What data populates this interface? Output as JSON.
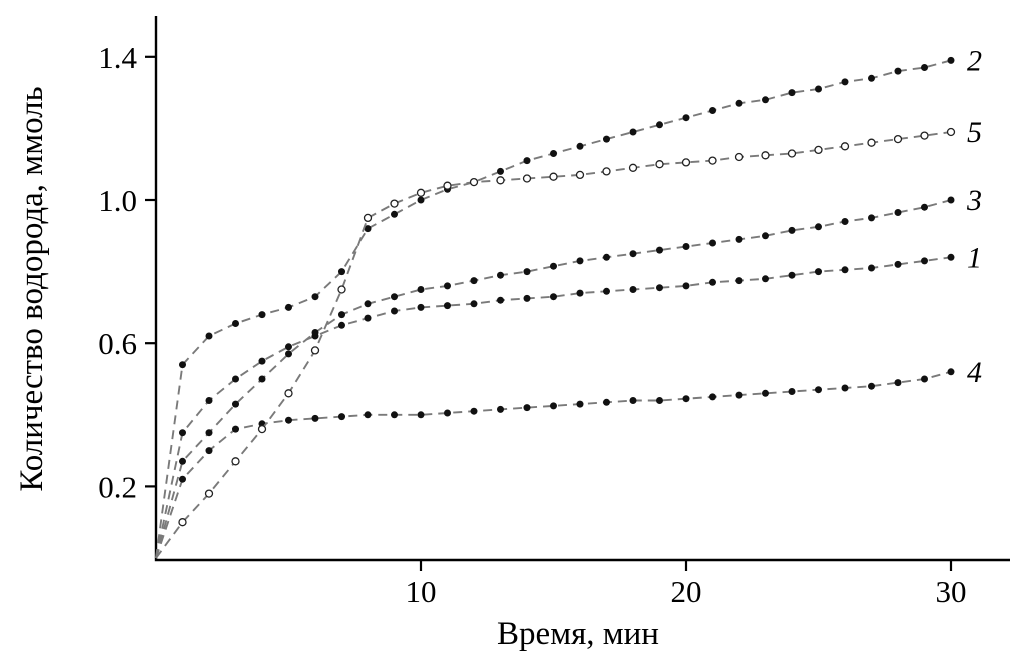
{
  "chart_data": {
    "type": "line",
    "title": "",
    "xlabel": "Время, мин",
    "ylabel": "Количество водорода, ммоль",
    "xlim": [
      0,
      31
    ],
    "ylim": [
      0,
      1.45
    ],
    "grid": false,
    "legend_position": "right-end-labels",
    "line_style": "dashed",
    "colors": {
      "axis": "#000000",
      "line": "#7a7a7a",
      "marker_filled": "#111111",
      "marker_open_fill": "#ffffff",
      "marker_open_stroke": "#222222"
    },
    "xticks": [
      {
        "value": 10,
        "label": "10"
      },
      {
        "value": 20,
        "label": "20"
      },
      {
        "value": 30,
        "label": "30"
      }
    ],
    "yticks": [
      {
        "value": 0.2,
        "label": "0.2"
      },
      {
        "value": 0.6,
        "label": "0.6"
      },
      {
        "value": 1.0,
        "label": "1.0"
      },
      {
        "value": 1.4,
        "label": "1.4"
      }
    ],
    "x": [
      0,
      1,
      2,
      3,
      4,
      5,
      6,
      7,
      8,
      9,
      10,
      11,
      12,
      13,
      14,
      15,
      16,
      17,
      18,
      19,
      20,
      21,
      22,
      23,
      24,
      25,
      26,
      27,
      28,
      29,
      30
    ],
    "series": [
      {
        "name": "1",
        "marker": "filled",
        "y": [
          0,
          0.35,
          0.44,
          0.5,
          0.55,
          0.59,
          0.62,
          0.65,
          0.67,
          0.69,
          0.7,
          0.705,
          0.71,
          0.72,
          0.725,
          0.73,
          0.74,
          0.745,
          0.75,
          0.755,
          0.76,
          0.77,
          0.775,
          0.78,
          0.79,
          0.8,
          0.805,
          0.81,
          0.82,
          0.83,
          0.84
        ]
      },
      {
        "name": "2",
        "marker": "filled",
        "y": [
          0,
          0.54,
          0.62,
          0.655,
          0.68,
          0.7,
          0.73,
          0.8,
          0.92,
          0.96,
          1.0,
          1.03,
          1.05,
          1.08,
          1.11,
          1.13,
          1.15,
          1.17,
          1.19,
          1.21,
          1.23,
          1.25,
          1.27,
          1.28,
          1.3,
          1.31,
          1.33,
          1.34,
          1.36,
          1.37,
          1.39
        ]
      },
      {
        "name": "3",
        "marker": "filled",
        "y": [
          0,
          0.27,
          0.35,
          0.43,
          0.5,
          0.57,
          0.63,
          0.68,
          0.71,
          0.73,
          0.75,
          0.76,
          0.775,
          0.79,
          0.8,
          0.815,
          0.83,
          0.84,
          0.85,
          0.86,
          0.87,
          0.88,
          0.89,
          0.9,
          0.915,
          0.925,
          0.94,
          0.95,
          0.965,
          0.98,
          1.0
        ]
      },
      {
        "name": "4",
        "marker": "filled",
        "y": [
          0,
          0.22,
          0.3,
          0.36,
          0.375,
          0.385,
          0.39,
          0.395,
          0.4,
          0.4,
          0.4,
          0.405,
          0.41,
          0.415,
          0.42,
          0.425,
          0.43,
          0.435,
          0.44,
          0.44,
          0.445,
          0.45,
          0.455,
          0.46,
          0.465,
          0.47,
          0.475,
          0.48,
          0.49,
          0.5,
          0.52
        ]
      },
      {
        "name": "5",
        "marker": "open",
        "y": [
          0,
          0.1,
          0.18,
          0.27,
          0.36,
          0.46,
          0.58,
          0.75,
          0.95,
          0.99,
          1.02,
          1.04,
          1.05,
          1.055,
          1.06,
          1.065,
          1.07,
          1.08,
          1.09,
          1.1,
          1.105,
          1.11,
          1.12,
          1.125,
          1.13,
          1.14,
          1.15,
          1.16,
          1.17,
          1.18,
          1.19
        ]
      }
    ]
  }
}
